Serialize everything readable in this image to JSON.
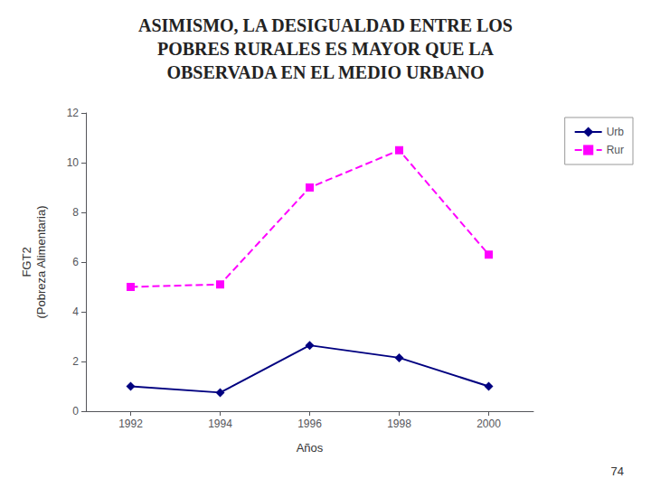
{
  "chart_data": {
    "type": "line",
    "title": "ASIMISMO, LA DESIGUALDAD ENTRE LOS\nPOBRES RURALES ES MAYOR QUE LA\nOBSERVADA EN EL MEDIO URBANO",
    "xlabel": "Años",
    "ylabel": "FGT2\n(Pobreza Alimentaria)",
    "x": [
      1992,
      1994,
      1996,
      1998,
      2000
    ],
    "series": [
      {
        "name": "Urb",
        "color": "#000080",
        "marker": "diamond",
        "line_style": "solid",
        "values": [
          1.0,
          0.75,
          2.65,
          2.15,
          1.0
        ]
      },
      {
        "name": "Rur",
        "color": "#FF00FF",
        "marker": "square",
        "line_style": "dashed",
        "values": [
          5.0,
          5.1,
          9.0,
          10.5,
          6.3
        ]
      }
    ],
    "xlim": [
      1991,
      2001
    ],
    "xticks": [
      1992,
      1994,
      1996,
      1998,
      2000
    ],
    "ylim": [
      0,
      12
    ],
    "yticks": [
      0,
      2,
      4,
      6,
      8,
      10,
      12
    ],
    "grid": false,
    "legend": "right",
    "annotations": [
      "74"
    ]
  }
}
